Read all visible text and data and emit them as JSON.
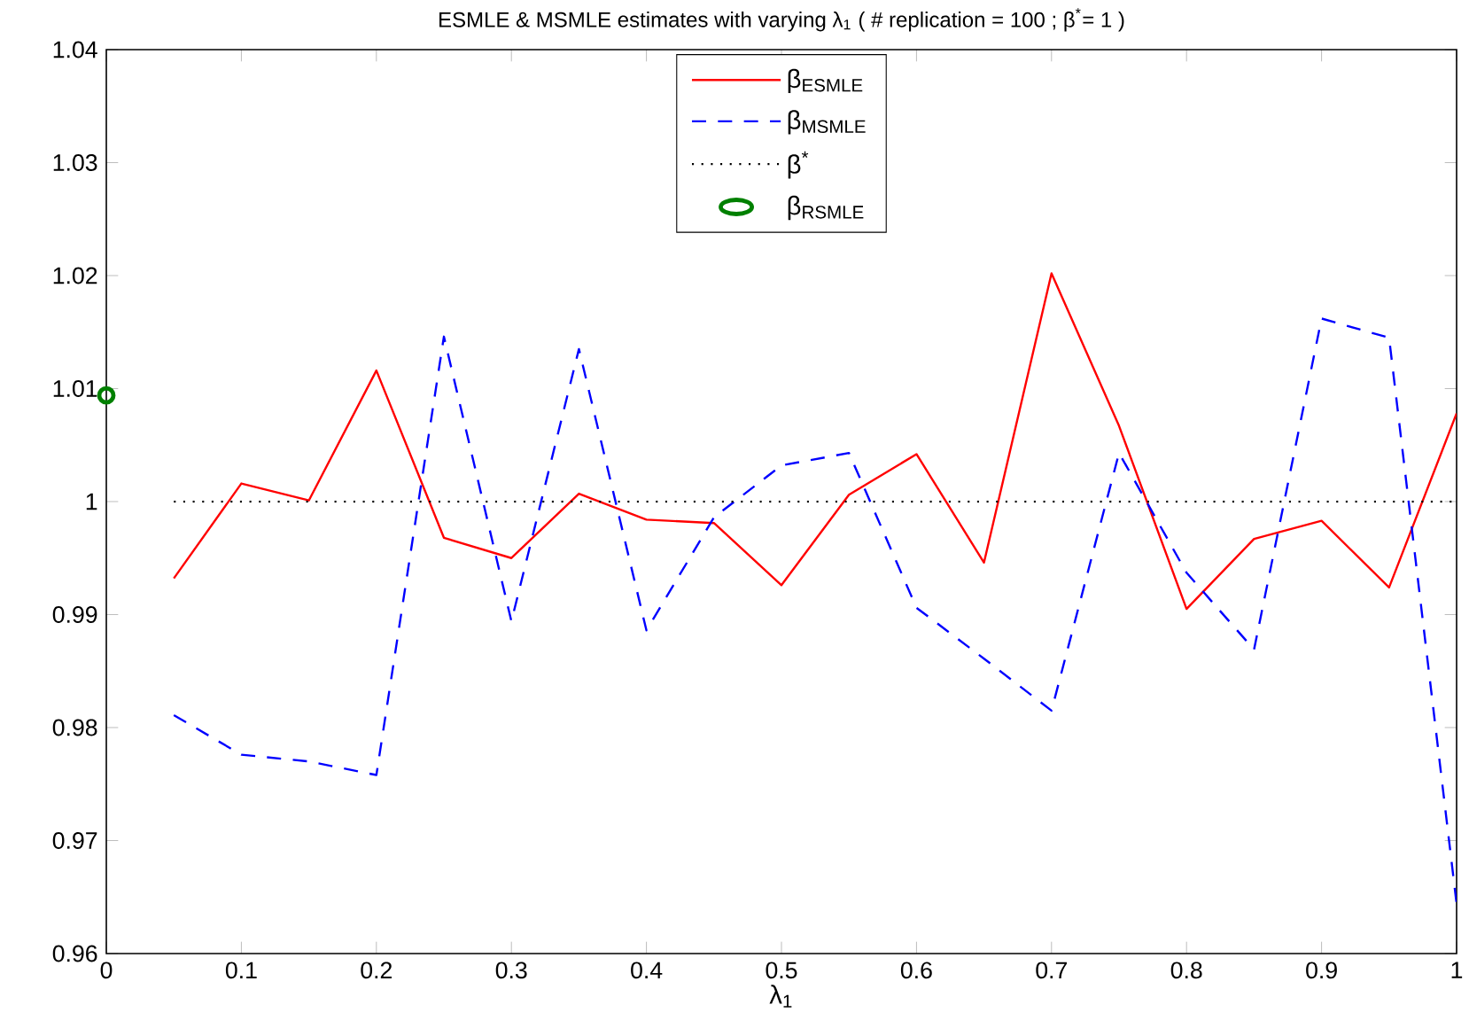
{
  "chart_data": {
    "type": "line",
    "title": "ESMLE & MSMLE estimates with varying λ$_{1}$ ( # replication = 100 ;  β$^{*}$= 1 )",
    "xlabel": "λ$_{1}$",
    "xlim": [
      0,
      1
    ],
    "ylim": [
      0.96,
      1.04
    ],
    "xticks": [
      0,
      0.1,
      0.2,
      0.3,
      0.4,
      0.5,
      0.6,
      0.7,
      0.8,
      0.9,
      1
    ],
    "yticks": [
      0.96,
      0.97,
      0.98,
      0.99,
      1,
      1.01,
      1.02,
      1.03,
      1.04
    ],
    "legend": "top",
    "grid": false,
    "series": [
      {
        "name": "β$_{ESMLE}$",
        "type": "line",
        "color": "#ff0000",
        "line_style": "solid",
        "marker": "none",
        "x": [
          0.05,
          0.1,
          0.15,
          0.2,
          0.25,
          0.3,
          0.35,
          0.4,
          0.45,
          0.5,
          0.55,
          0.6,
          0.65,
          0.7,
          0.75,
          0.8,
          0.85,
          0.9,
          0.95,
          1
        ],
        "values": [
          0.9932,
          1.0016,
          1.0001,
          1.0116,
          0.9968,
          0.995,
          1.0007,
          0.9984,
          0.9981,
          0.9926,
          1.0006,
          1.0042,
          0.9946,
          1.0202,
          1.0067,
          0.9905,
          0.9967,
          0.9983,
          0.9924,
          1.0078
        ]
      },
      {
        "name": "β$_{MSMLE}$",
        "type": "line",
        "color": "#0000ff",
        "line_style": "dashed",
        "marker": "none",
        "x": [
          0.05,
          0.1,
          0.15,
          0.2,
          0.25,
          0.3,
          0.35,
          0.4,
          0.45,
          0.5,
          0.55,
          0.6,
          0.65,
          0.7,
          0.75,
          0.8,
          0.85,
          0.9,
          0.95,
          1
        ],
        "values": [
          0.9811,
          0.9776,
          0.977,
          0.9758,
          1.0146,
          0.9894,
          1.0135,
          0.9886,
          0.9986,
          1.0032,
          1.0043,
          0.9906,
          0.9861,
          0.9815,
          1.0043,
          0.9937,
          0.9869,
          1.0162,
          1.0145,
          0.9644
        ]
      },
      {
        "name": "β$^{*}$",
        "color": "#000000",
        "line_style": "dotted",
        "marker": "none",
        "x": [
          0.05,
          1
        ],
        "values": [
          1,
          1
        ]
      },
      {
        "name": "β$_{RSMLE}$",
        "type": "scatter",
        "color": "#008000",
        "marker": "circle",
        "x": [
          0
        ],
        "values": [
          1.0094
        ]
      }
    ]
  }
}
